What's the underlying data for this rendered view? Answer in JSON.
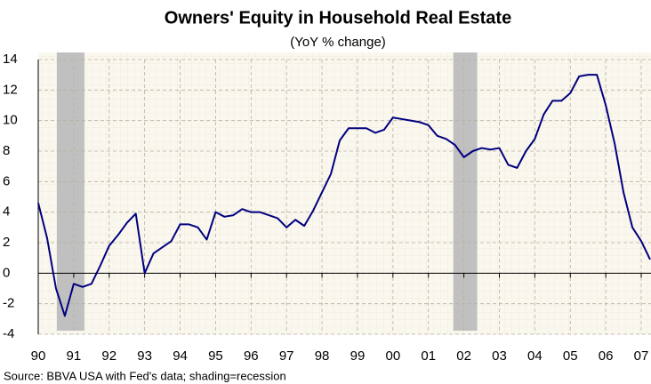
{
  "chart_data": {
    "type": "line",
    "title": "Owners' Equity in Household Real Estate",
    "subtitle": "(YoY % change)",
    "source": "Source: BBVA USA with Fed's data; shading=recession",
    "x": [
      1990,
      1990.25,
      1990.5,
      1990.75,
      1991,
      1991.25,
      1991.5,
      1991.75,
      1992,
      1992.25,
      1992.5,
      1992.75,
      1993,
      1993.25,
      1993.5,
      1993.75,
      1994,
      1994.25,
      1994.5,
      1994.75,
      1995,
      1995.25,
      1995.5,
      1995.75,
      1996,
      1996.25,
      1996.5,
      1996.75,
      1997,
      1997.25,
      1997.5,
      1997.75,
      1998,
      1998.25,
      1998.5,
      1998.75,
      1999,
      1999.25,
      1999.5,
      1999.75,
      2000,
      2000.25,
      2000.5,
      2000.75,
      2001,
      2001.25,
      2001.5,
      2001.75,
      2002,
      2002.25,
      2002.5,
      2002.75,
      2003,
      2003.25,
      2003.5,
      2003.75,
      2004,
      2004.25,
      2004.5,
      2004.75,
      2005,
      2005.25,
      2005.5,
      2005.75,
      2006,
      2006.25,
      2006.5,
      2006.75,
      2007,
      2007.25
    ],
    "series": [
      {
        "name": "Owners' equity",
        "color": "#000080",
        "values": [
          4.6,
          2.3,
          -1.0,
          -2.8,
          -0.7,
          -0.9,
          -0.7,
          0.5,
          1.8,
          2.5,
          3.3,
          3.9,
          0.0,
          1.3,
          1.7,
          2.1,
          3.2,
          3.2,
          3.0,
          2.2,
          4.0,
          3.7,
          3.8,
          4.2,
          4.0,
          4.0,
          3.8,
          3.6,
          3.0,
          3.5,
          3.1,
          4.1,
          5.3,
          6.5,
          8.7,
          9.5,
          9.5,
          9.5,
          9.2,
          9.4,
          10.2,
          10.1,
          10.0,
          9.9,
          9.7,
          9.0,
          8.8,
          8.4,
          7.6,
          8.0,
          8.2,
          8.1,
          8.2,
          7.1,
          6.9,
          8.0,
          8.8,
          10.4,
          11.3,
          11.3,
          11.8,
          12.9,
          13.0,
          13.0,
          11.0,
          8.5,
          5.3,
          3.0,
          2.1,
          0.9
        ]
      }
    ],
    "recessions": [
      [
        1990.525,
        1991.3
      ],
      [
        2001.7,
        2002.375
      ]
    ],
    "recession_color": "#c0c0c0",
    "xlim": [
      1990,
      2007.25
    ],
    "xticks": [
      {
        "value": 1990,
        "label": "90"
      },
      {
        "value": 1991,
        "label": "91"
      },
      {
        "value": 1992,
        "label": "92"
      },
      {
        "value": 1993,
        "label": "93"
      },
      {
        "value": 1994,
        "label": "94"
      },
      {
        "value": 1995,
        "label": "95"
      },
      {
        "value": 1996,
        "label": "96"
      },
      {
        "value": 1997,
        "label": "97"
      },
      {
        "value": 1998,
        "label": "98"
      },
      {
        "value": 1999,
        "label": "99"
      },
      {
        "value": 2000,
        "label": "00"
      },
      {
        "value": 2001,
        "label": "01"
      },
      {
        "value": 2002,
        "label": "02"
      },
      {
        "value": 2003,
        "label": "03"
      },
      {
        "value": 2004,
        "label": "04"
      },
      {
        "value": 2005,
        "label": "05"
      },
      {
        "value": 2006,
        "label": "06"
      },
      {
        "value": 2007,
        "label": "07"
      }
    ],
    "ylim": [
      -4,
      14
    ],
    "yticks": [
      -4,
      -2,
      0,
      2,
      4,
      6,
      8,
      10,
      12,
      14
    ],
    "grid": true
  }
}
